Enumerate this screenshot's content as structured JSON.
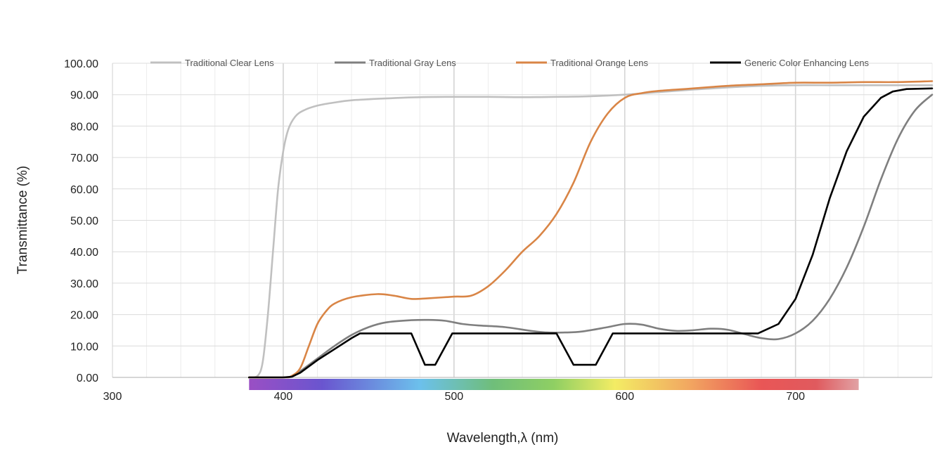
{
  "chart_data": {
    "type": "line",
    "title": "",
    "xlabel": "Wavelength,λ (nm)",
    "ylabel": "Transmittance (%)",
    "xlim": [
      300,
      780
    ],
    "ylim": [
      0,
      100
    ],
    "x_ticks": [
      300,
      400,
      500,
      600,
      700
    ],
    "y_ticks": [
      "0.00",
      "10.00",
      "20.00",
      "30.00",
      "40.00",
      "50.00",
      "60.00",
      "70.00",
      "80.00",
      "90.00",
      "100.00"
    ],
    "grid": true,
    "legend_position": "top",
    "spectrum_bar": {
      "from_nm": 380,
      "to_nm": 737
    },
    "series": [
      {
        "name": "Traditional Clear Lens",
        "color": "#c0c0c0",
        "points": [
          [
            380,
            0
          ],
          [
            385,
            0.5
          ],
          [
            388,
            5
          ],
          [
            391,
            20
          ],
          [
            394,
            40
          ],
          [
            397,
            60
          ],
          [
            400,
            72
          ],
          [
            403,
            79
          ],
          [
            407,
            83
          ],
          [
            412,
            85
          ],
          [
            420,
            86.5
          ],
          [
            430,
            87.5
          ],
          [
            440,
            88.2
          ],
          [
            460,
            88.8
          ],
          [
            480,
            89.2
          ],
          [
            500,
            89.3
          ],
          [
            520,
            89.3
          ],
          [
            540,
            89.2
          ],
          [
            560,
            89.3
          ],
          [
            580,
            89.5
          ],
          [
            600,
            90
          ],
          [
            620,
            90.8
          ],
          [
            640,
            91.6
          ],
          [
            660,
            92.3
          ],
          [
            680,
            92.8
          ],
          [
            700,
            93
          ],
          [
            720,
            93
          ],
          [
            740,
            93
          ],
          [
            760,
            93
          ],
          [
            780,
            93
          ]
        ]
      },
      {
        "name": "Traditional Gray Lens",
        "color": "#7f7f7f",
        "points": [
          [
            380,
            0
          ],
          [
            400,
            0
          ],
          [
            405,
            0.3
          ],
          [
            410,
            2
          ],
          [
            420,
            6
          ],
          [
            430,
            10
          ],
          [
            440,
            13.5
          ],
          [
            450,
            16
          ],
          [
            460,
            17.5
          ],
          [
            475,
            18.2
          ],
          [
            485,
            18.3
          ],
          [
            495,
            18
          ],
          [
            505,
            17
          ],
          [
            515,
            16.5
          ],
          [
            530,
            16
          ],
          [
            545,
            14.8
          ],
          [
            555,
            14.3
          ],
          [
            565,
            14.3
          ],
          [
            575,
            14.6
          ],
          [
            590,
            16
          ],
          [
            600,
            17
          ],
          [
            610,
            16.8
          ],
          [
            620,
            15.5
          ],
          [
            630,
            14.8
          ],
          [
            640,
            15
          ],
          [
            650,
            15.5
          ],
          [
            660,
            15.2
          ],
          [
            670,
            13.8
          ],
          [
            680,
            12.5
          ],
          [
            690,
            12.2
          ],
          [
            700,
            14
          ],
          [
            710,
            18
          ],
          [
            720,
            25
          ],
          [
            730,
            35
          ],
          [
            740,
            48
          ],
          [
            750,
            63
          ],
          [
            760,
            76
          ],
          [
            770,
            85
          ],
          [
            780,
            90
          ]
        ]
      },
      {
        "name": "Traditional Orange Lens",
        "color": "#d98546",
        "points": [
          [
            380,
            0
          ],
          [
            400,
            0
          ],
          [
            405,
            0.5
          ],
          [
            410,
            3
          ],
          [
            415,
            10
          ],
          [
            420,
            17
          ],
          [
            425,
            21
          ],
          [
            430,
            23.5
          ],
          [
            440,
            25.5
          ],
          [
            455,
            26.5
          ],
          [
            465,
            26
          ],
          [
            475,
            25
          ],
          [
            485,
            25.2
          ],
          [
            500,
            25.7
          ],
          [
            510,
            26
          ],
          [
            520,
            29
          ],
          [
            530,
            34
          ],
          [
            540,
            40
          ],
          [
            550,
            45
          ],
          [
            560,
            52
          ],
          [
            570,
            62
          ],
          [
            580,
            75
          ],
          [
            590,
            84
          ],
          [
            600,
            89
          ],
          [
            610,
            90.5
          ],
          [
            620,
            91.2
          ],
          [
            640,
            92
          ],
          [
            660,
            92.8
          ],
          [
            680,
            93.3
          ],
          [
            700,
            93.8
          ],
          [
            720,
            93.8
          ],
          [
            740,
            94
          ],
          [
            760,
            94
          ],
          [
            780,
            94.3
          ]
        ]
      },
      {
        "name": "Generic Color Enhancing Lens",
        "color": "#000000",
        "points": [
          [
            380,
            0
          ],
          [
            400,
            0
          ],
          [
            405,
            0.2
          ],
          [
            410,
            1.5
          ],
          [
            420,
            5.5
          ],
          [
            430,
            9
          ],
          [
            440,
            12.5
          ],
          [
            445,
            14
          ],
          [
            475,
            14
          ],
          [
            483,
            4
          ],
          [
            489,
            4
          ],
          [
            499,
            14
          ],
          [
            560,
            14
          ],
          [
            570,
            4
          ],
          [
            583,
            4
          ],
          [
            593,
            14
          ],
          [
            678,
            14
          ],
          [
            680,
            14.5
          ],
          [
            690,
            17
          ],
          [
            700,
            25
          ],
          [
            710,
            39
          ],
          [
            720,
            57
          ],
          [
            730,
            72
          ],
          [
            740,
            83
          ],
          [
            750,
            89
          ],
          [
            757,
            91
          ],
          [
            765,
            91.8
          ],
          [
            780,
            92
          ]
        ]
      }
    ]
  }
}
